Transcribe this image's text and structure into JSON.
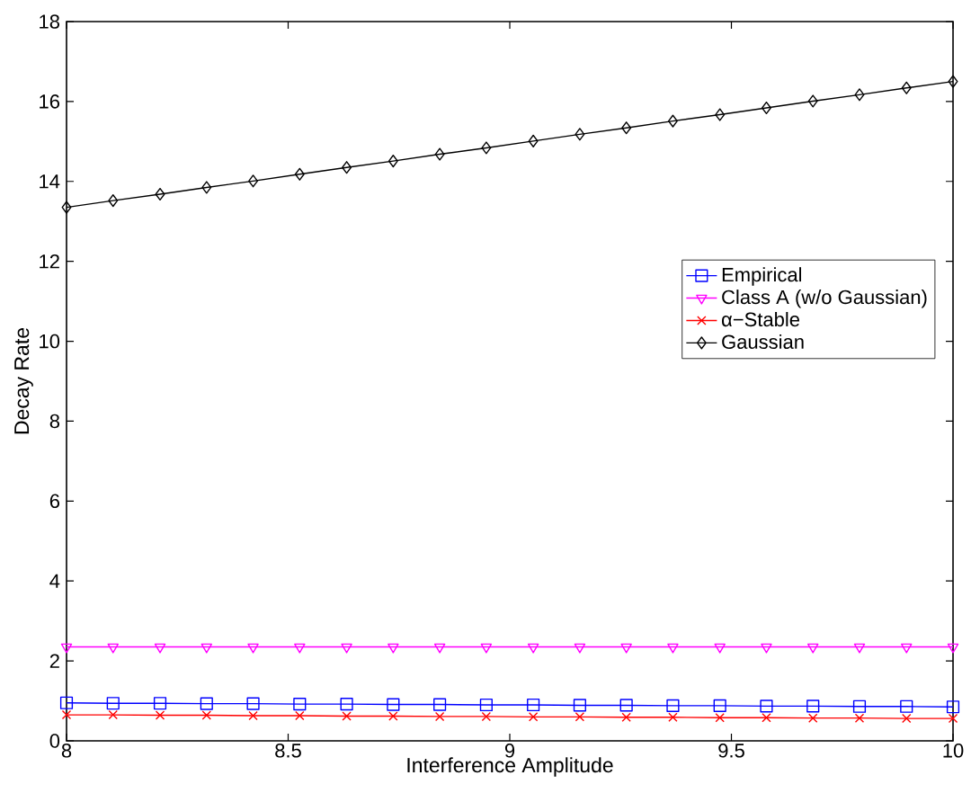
{
  "chart_data": {
    "type": "line",
    "xlabel": "Interference Amplitude",
    "ylabel": "Decay Rate",
    "x": [
      8,
      8.105,
      8.211,
      8.316,
      8.421,
      8.526,
      8.632,
      8.737,
      8.842,
      8.947,
      9.053,
      9.158,
      9.263,
      9.368,
      9.474,
      9.579,
      9.684,
      9.789,
      9.895,
      10
    ],
    "series": [
      {
        "name": "Empirical",
        "color": "#0000ff",
        "marker": "square",
        "values": [
          0.95,
          0.94,
          0.94,
          0.93,
          0.93,
          0.92,
          0.92,
          0.91,
          0.91,
          0.9,
          0.9,
          0.89,
          0.89,
          0.88,
          0.88,
          0.87,
          0.87,
          0.86,
          0.86,
          0.85
        ]
      },
      {
        "name": "Class A (w/o Gaussian)",
        "color": "#ff00ff",
        "marker": "triangle",
        "values": [
          2.35,
          2.35,
          2.35,
          2.35,
          2.35,
          2.35,
          2.35,
          2.35,
          2.35,
          2.35,
          2.35,
          2.35,
          2.35,
          2.35,
          2.35,
          2.35,
          2.35,
          2.35,
          2.35,
          2.35
        ]
      },
      {
        "name": "α−Stable",
        "color": "#ff0000",
        "marker": "cross",
        "values": [
          0.65,
          0.65,
          0.64,
          0.64,
          0.63,
          0.63,
          0.62,
          0.62,
          0.61,
          0.61,
          0.6,
          0.6,
          0.59,
          0.59,
          0.58,
          0.58,
          0.57,
          0.57,
          0.56,
          0.56
        ]
      },
      {
        "name": "Gaussian",
        "color": "#000000",
        "marker": "diamond",
        "values": [
          13.35,
          13.52,
          13.68,
          13.85,
          14.01,
          14.18,
          14.35,
          14.51,
          14.68,
          14.84,
          15.01,
          15.18,
          15.34,
          15.51,
          15.67,
          15.84,
          16.01,
          16.17,
          16.34,
          16.5
        ]
      }
    ],
    "xlim": [
      8,
      10
    ],
    "xticks": [
      8,
      8.5,
      9,
      9.5,
      10
    ],
    "ylim": [
      0,
      18
    ],
    "yticks": [
      0,
      2,
      4,
      6,
      8,
      10,
      12,
      14,
      16,
      18
    ],
    "grid": false,
    "legend": "right",
    "line_style": "solid"
  }
}
